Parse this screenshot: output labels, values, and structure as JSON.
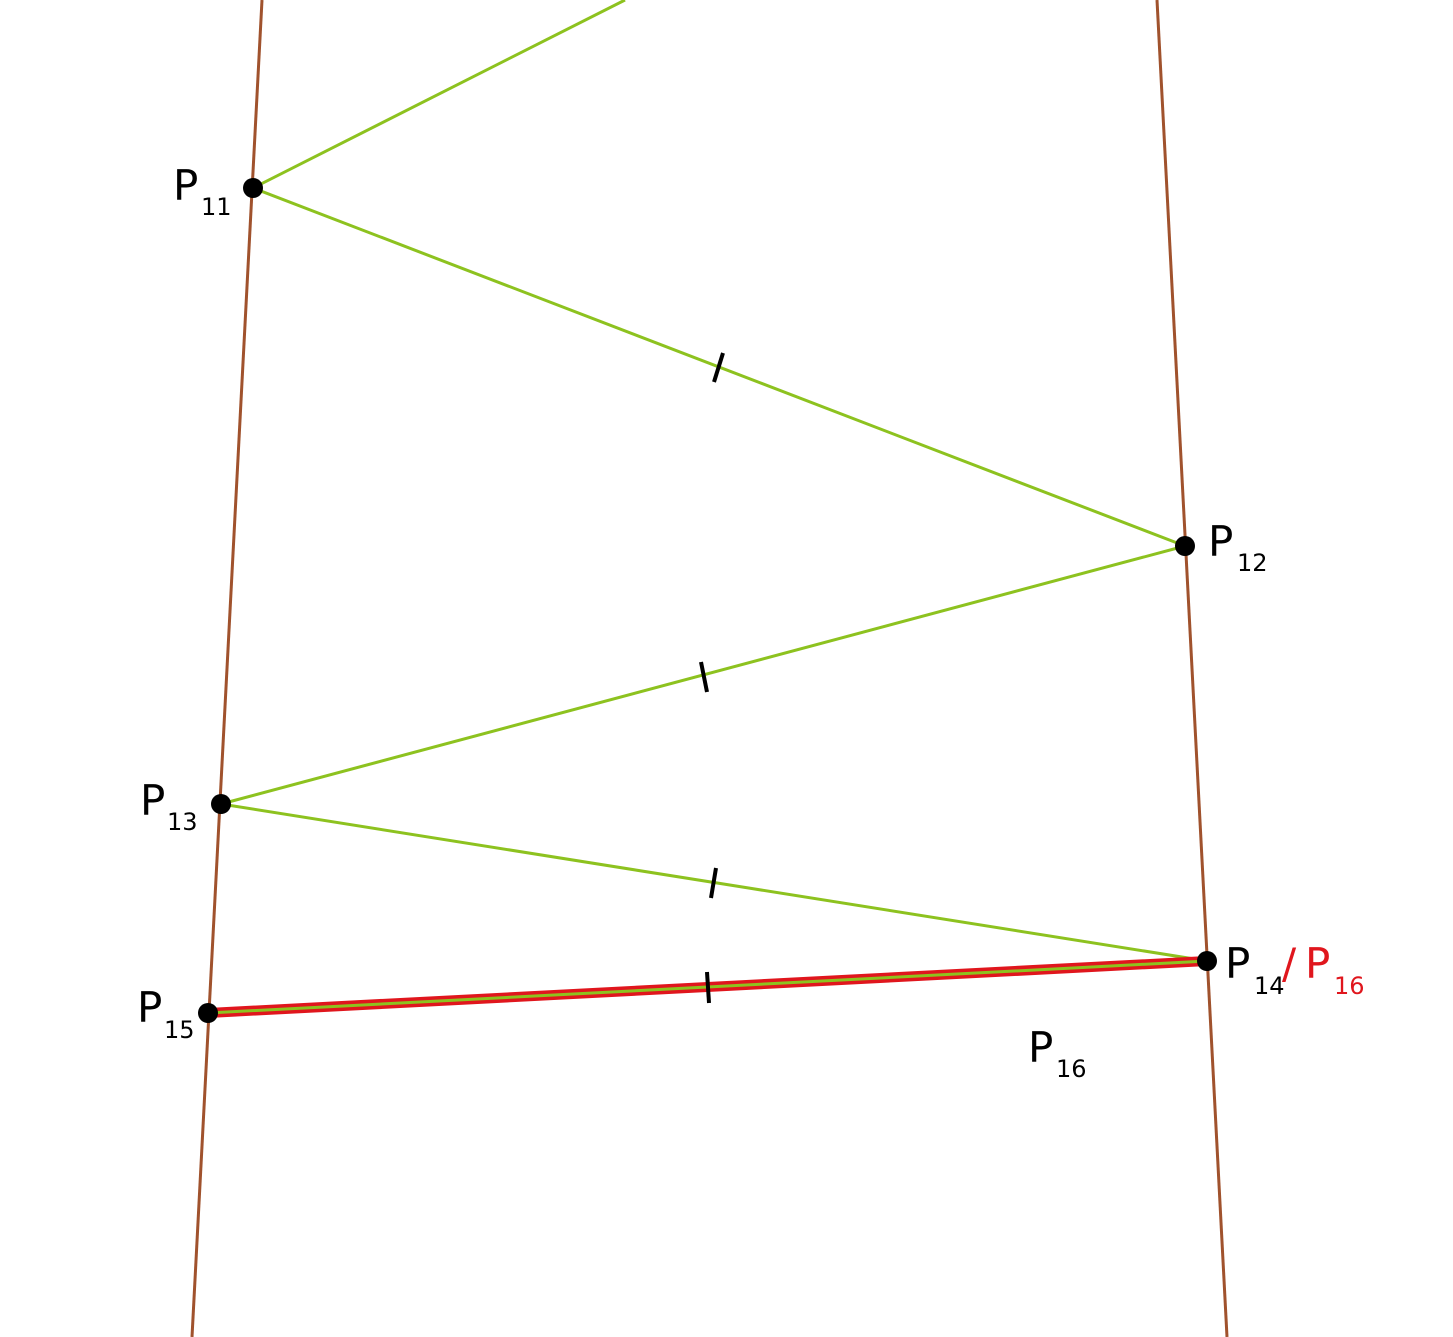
{
  "points": [
    {
      "main": "P",
      "sub": "11"
    },
    {
      "main": "P",
      "sub": "12"
    },
    {
      "main": "P",
      "sub": "13"
    },
    {
      "main": "P",
      "sub": "14",
      "sep": "/",
      "alt_main": "P",
      "alt_sub": "16"
    },
    {
      "main": "P",
      "sub": "15"
    },
    {
      "main": "P",
      "sub": "16"
    }
  ]
}
